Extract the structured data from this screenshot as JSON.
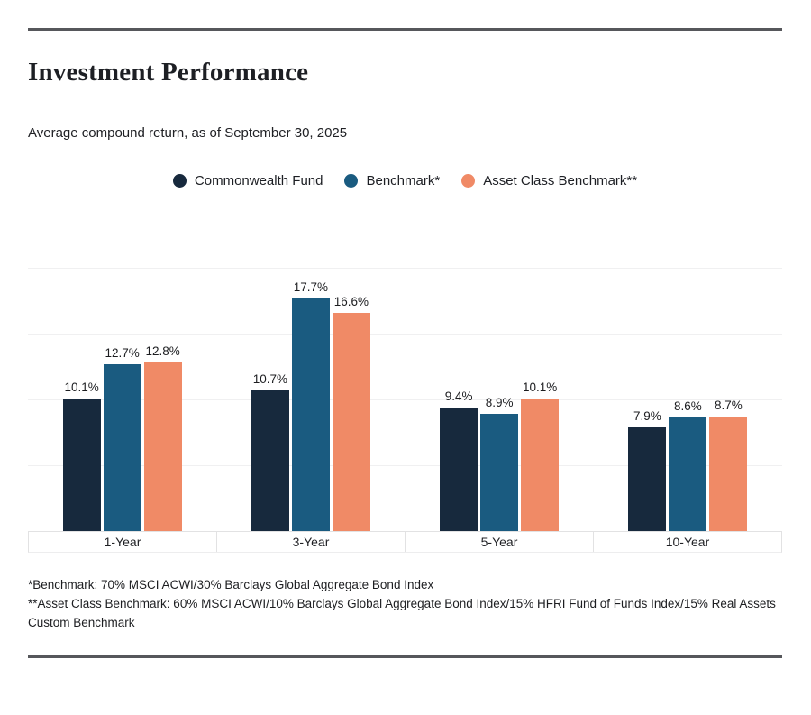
{
  "page": {
    "title": "Investment Performance",
    "subtitle": "Average compound return, as of September 30, 2025"
  },
  "chart_data": {
    "type": "bar",
    "title": "Investment Performance",
    "subtitle": "Average compound return, as of September 30, 2025",
    "categories": [
      "1-Year",
      "3-Year",
      "5-Year",
      "10-Year"
    ],
    "series": [
      {
        "name": "Commonwealth Fund",
        "color": "#17293d",
        "values": [
          10.1,
          10.7,
          9.4,
          7.9
        ]
      },
      {
        "name": "Benchmark*",
        "color": "#1a5b80",
        "values": [
          12.7,
          17.7,
          8.9,
          8.6
        ]
      },
      {
        "name": "Asset Class Benchmark**",
        "color": "#f08a66",
        "values": [
          12.8,
          16.6,
          10.1,
          8.7
        ]
      }
    ],
    "value_label_suffix": "%",
    "ylim": [
      0,
      20
    ],
    "gridline_step": 5,
    "grid": true,
    "legend_position": "top-center",
    "colors": {
      "accent_dark_rule": "#56575b",
      "gridline": "#f0f0f1",
      "axis_border": "#e2e2e3"
    }
  },
  "footnotes": [
    "*Benchmark: 70% MSCI ACWI/30% Barclays Global Aggregate Bond Index",
    "**Asset Class Benchmark: 60% MSCI ACWI/10% Barclays Global Aggregate Bond Index/15% HFRI Fund of Funds Index/15% Real Assets Custom Benchmark"
  ]
}
